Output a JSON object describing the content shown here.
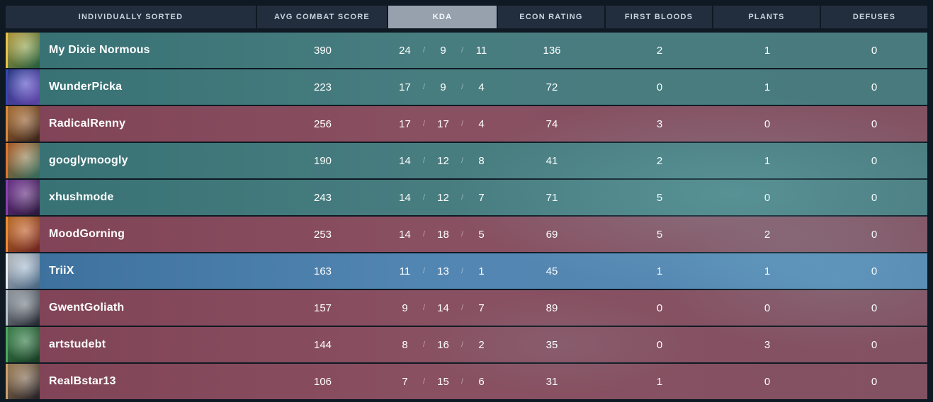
{
  "header": {
    "columns": [
      {
        "label": "INDIVIDUALLY SORTED",
        "active": false
      },
      {
        "label": "AVG COMBAT SCORE",
        "active": false
      },
      {
        "label": "KDA",
        "active": true
      },
      {
        "label": "ECON RATING",
        "active": false
      },
      {
        "label": "FIRST BLOODS",
        "active": false
      },
      {
        "label": "PLANTS",
        "active": false
      },
      {
        "label": "DEFUSES",
        "active": false
      }
    ]
  },
  "kda_separator": "/",
  "colors": {
    "background": "#0f1923",
    "header_bg": "#222e3d",
    "header_active_bg": "#97a1ae",
    "header_text": "#c9d3de",
    "row_ally": "#4a8688",
    "row_enemy": "#96586a",
    "row_selected": "#588fbe",
    "text": "#ffffff"
  },
  "players": [
    {
      "name": "My Dixie Normous",
      "team": "ally",
      "selected": false,
      "avatar_colors": [
        "#e6c34a",
        "#2f7d52"
      ],
      "acs": "390",
      "kills": "24",
      "deaths": "9",
      "assists": "11",
      "econ": "136",
      "first_bloods": "2",
      "plants": "1",
      "defuses": "0"
    },
    {
      "name": "WunderPicka",
      "team": "ally",
      "selected": false,
      "avatar_colors": [
        "#3548b0",
        "#7e5ae0"
      ],
      "acs": "223",
      "kills": "17",
      "deaths": "9",
      "assists": "4",
      "econ": "72",
      "first_bloods": "0",
      "plants": "1",
      "defuses": "0"
    },
    {
      "name": "RadicalRenny",
      "team": "enemy",
      "selected": false,
      "avatar_colors": [
        "#d98a3d",
        "#4a2e22"
      ],
      "acs": "256",
      "kills": "17",
      "deaths": "17",
      "assists": "4",
      "econ": "74",
      "first_bloods": "3",
      "plants": "0",
      "defuses": "0"
    },
    {
      "name": "googlymoogly",
      "team": "ally",
      "selected": false,
      "avatar_colors": [
        "#e0762f",
        "#3f8f7d"
      ],
      "acs": "190",
      "kills": "14",
      "deaths": "12",
      "assists": "8",
      "econ": "41",
      "first_bloods": "2",
      "plants": "1",
      "defuses": "0"
    },
    {
      "name": "xhushmode",
      "team": "ally",
      "selected": false,
      "avatar_colors": [
        "#8a3fb0",
        "#3a1f4f"
      ],
      "acs": "243",
      "kills": "14",
      "deaths": "12",
      "assists": "7",
      "econ": "71",
      "first_bloods": "5",
      "plants": "0",
      "defuses": "0"
    },
    {
      "name": "MoodGorning",
      "team": "enemy",
      "selected": false,
      "avatar_colors": [
        "#f08a2e",
        "#8f2f2a"
      ],
      "acs": "253",
      "kills": "14",
      "deaths": "18",
      "assists": "5",
      "econ": "69",
      "first_bloods": "5",
      "plants": "2",
      "defuses": "0"
    },
    {
      "name": "TriiX",
      "team": "ally",
      "selected": true,
      "avatar_colors": [
        "#e8edf2",
        "#5f86ad"
      ],
      "acs": "163",
      "kills": "11",
      "deaths": "13",
      "assists": "1",
      "econ": "45",
      "first_bloods": "1",
      "plants": "1",
      "defuses": "0"
    },
    {
      "name": "GwentGoliath",
      "team": "enemy",
      "selected": false,
      "avatar_colors": [
        "#b9c2cc",
        "#2e3440"
      ],
      "acs": "157",
      "kills": "9",
      "deaths": "14",
      "assists": "7",
      "econ": "89",
      "first_bloods": "0",
      "plants": "0",
      "defuses": "0"
    },
    {
      "name": "artstudebt",
      "team": "enemy",
      "selected": false,
      "avatar_colors": [
        "#4aa55f",
        "#1f4f2e"
      ],
      "acs": "144",
      "kills": "8",
      "deaths": "16",
      "assists": "2",
      "econ": "35",
      "first_bloods": "0",
      "plants": "3",
      "defuses": "0"
    },
    {
      "name": "RealBstar13",
      "team": "enemy",
      "selected": false,
      "avatar_colors": [
        "#caa06a",
        "#2e2a33"
      ],
      "acs": "106",
      "kills": "7",
      "deaths": "15",
      "assists": "6",
      "econ": "31",
      "first_bloods": "1",
      "plants": "0",
      "defuses": "0"
    }
  ]
}
